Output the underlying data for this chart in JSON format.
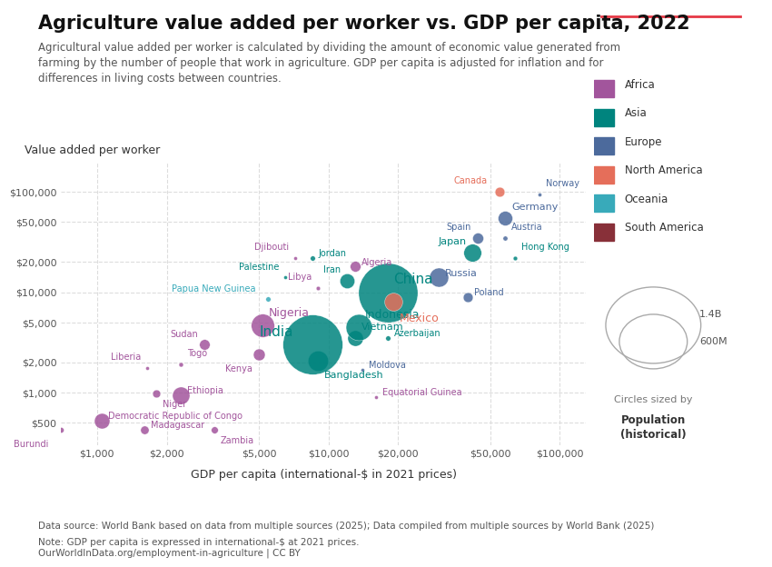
{
  "title": "Agriculture value added per worker vs. GDP per capita, 2022",
  "subtitle": "Agricultural value added per worker is calculated by dividing the amount of economic value generated from\nfarming by the number of people that work in agriculture. GDP per capita is adjusted for inflation and for\ndifferences in living costs between countries.",
  "ylabel": "Value added per worker",
  "xlabel": "GDP per capita (international-$ in 2021 prices)",
  "source": "Data source: World Bank based on data from multiple sources (2025); Data compiled from multiple sources by World Bank (2025)",
  "note": "Note: GDP per capita is expressed in international-$ at 2021 prices.\nOurWorldInData.org/employment-in-agriculture | CC BY",
  "region_colors": {
    "Africa": "#a2559c",
    "Asia": "#00847e",
    "Europe": "#4c6a9c",
    "North America": "#e56e5a",
    "Oceania": "#38aaba",
    "South America": "#883039"
  },
  "countries": [
    {
      "name": "Burundi",
      "gdp": 700,
      "vaw": 430,
      "pop": 12,
      "region": "Africa"
    },
    {
      "name": "Democratic Republic of Congo",
      "gdp": 1050,
      "vaw": 530,
      "pop": 95,
      "region": "Africa"
    },
    {
      "name": "Madagascar",
      "gdp": 1600,
      "vaw": 430,
      "pop": 28,
      "region": "Africa"
    },
    {
      "name": "Zambia",
      "gdp": 3200,
      "vaw": 430,
      "pop": 19,
      "region": "Africa"
    },
    {
      "name": "Liberia",
      "gdp": 1650,
      "vaw": 1750,
      "pop": 5,
      "region": "Africa"
    },
    {
      "name": "Niger",
      "gdp": 1800,
      "vaw": 980,
      "pop": 25,
      "region": "Africa"
    },
    {
      "name": "Ethiopia",
      "gdp": 2300,
      "vaw": 950,
      "pop": 120,
      "region": "Africa"
    },
    {
      "name": "Togo",
      "gdp": 2300,
      "vaw": 1900,
      "pop": 8,
      "region": "Africa"
    },
    {
      "name": "Sudan",
      "gdp": 2900,
      "vaw": 3000,
      "pop": 44,
      "region": "Africa"
    },
    {
      "name": "Kenya",
      "gdp": 5000,
      "vaw": 2400,
      "pop": 55,
      "region": "Africa"
    },
    {
      "name": "Nigeria",
      "gdp": 5200,
      "vaw": 4700,
      "pop": 215,
      "region": "Africa"
    },
    {
      "name": "Djibouti",
      "gdp": 7200,
      "vaw": 22000,
      "pop": 1,
      "region": "Africa"
    },
    {
      "name": "Algeria",
      "gdp": 13000,
      "vaw": 18000,
      "pop": 45,
      "region": "Africa"
    },
    {
      "name": "Libya",
      "gdp": 9000,
      "vaw": 11000,
      "pop": 7,
      "region": "Africa"
    },
    {
      "name": "Equatorial Guinea",
      "gdp": 16000,
      "vaw": 900,
      "pop": 1.5,
      "region": "Africa"
    },
    {
      "name": "Palestine",
      "gdp": 6500,
      "vaw": 14000,
      "pop": 5,
      "region": "Asia"
    },
    {
      "name": "Jordan",
      "gdp": 8500,
      "vaw": 22000,
      "pop": 10,
      "region": "Asia"
    },
    {
      "name": "Papua New Guinea",
      "gdp": 5500,
      "vaw": 8500,
      "pop": 10,
      "region": "Oceania"
    },
    {
      "name": "Bangladesh",
      "gdp": 9000,
      "vaw": 2100,
      "pop": 165,
      "region": "Asia"
    },
    {
      "name": "India",
      "gdp": 8500,
      "vaw": 3000,
      "pop": 1420,
      "region": "Asia"
    },
    {
      "name": "Vietnam",
      "gdp": 13000,
      "vaw": 3500,
      "pop": 97,
      "region": "Asia"
    },
    {
      "name": "Indonesia",
      "gdp": 13500,
      "vaw": 4500,
      "pop": 275,
      "region": "Asia"
    },
    {
      "name": "Iran",
      "gdp": 12000,
      "vaw": 13000,
      "pop": 87,
      "region": "Asia"
    },
    {
      "name": "China",
      "gdp": 18000,
      "vaw": 10000,
      "pop": 1400,
      "region": "Asia"
    },
    {
      "name": "Azerbaijan",
      "gdp": 18000,
      "vaw": 3500,
      "pop": 10,
      "region": "Asia"
    },
    {
      "name": "Moldova",
      "gdp": 14000,
      "vaw": 1700,
      "pop": 2.5,
      "region": "Europe"
    },
    {
      "name": "Russia",
      "gdp": 30000,
      "vaw": 14000,
      "pop": 145,
      "region": "Europe"
    },
    {
      "name": "Poland",
      "gdp": 40000,
      "vaw": 9000,
      "pop": 38,
      "region": "Europe"
    },
    {
      "name": "Japan",
      "gdp": 42000,
      "vaw": 25000,
      "pop": 125,
      "region": "Asia"
    },
    {
      "name": "Spain",
      "gdp": 44000,
      "vaw": 35000,
      "pop": 47,
      "region": "Europe"
    },
    {
      "name": "Austria",
      "gdp": 58000,
      "vaw": 35000,
      "pop": 9,
      "region": "Europe"
    },
    {
      "name": "Hong Kong",
      "gdp": 64000,
      "vaw": 22000,
      "pop": 7.5,
      "region": "Asia"
    },
    {
      "name": "Germany",
      "gdp": 58000,
      "vaw": 55000,
      "pop": 83,
      "region": "Europe"
    },
    {
      "name": "Canada",
      "gdp": 55000,
      "vaw": 100000,
      "pop": 38,
      "region": "North America"
    },
    {
      "name": "Norway",
      "gdp": 82000,
      "vaw": 95000,
      "pop": 5.4,
      "region": "Europe"
    },
    {
      "name": "Mexico",
      "gdp": 19000,
      "vaw": 8000,
      "pop": 128,
      "region": "North America"
    }
  ],
  "background_color": "#ffffff",
  "grid_color": "#dddddd",
  "pop_scale": 1400000000.0,
  "pop_scale_label": "1.4B",
  "pop_scale_small": 600000000.0,
  "pop_scale_small_label": "600M"
}
